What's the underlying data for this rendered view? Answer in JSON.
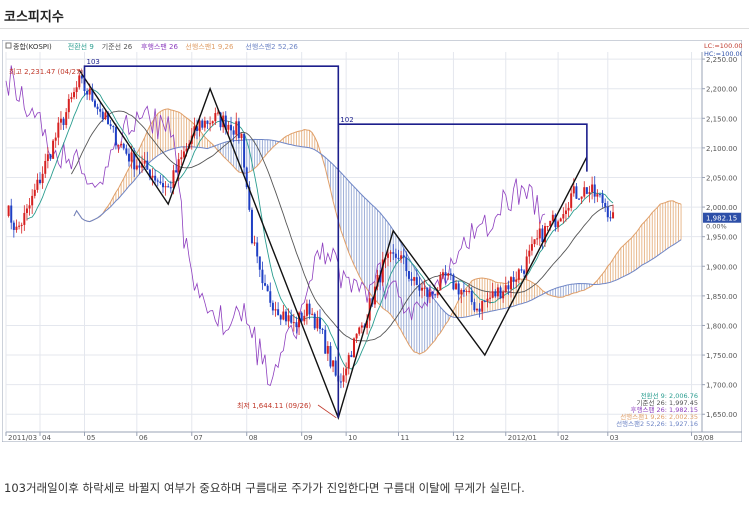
{
  "page": {
    "title": "코스피지수",
    "caption": "103거래일이후 하락세로 바뀔지 여부가 중요하며 구름대로 주가가 진입한다면 구름대 이탈에 무게가 실린다."
  },
  "chart_data": {
    "type": "candlestick-ichimoku",
    "legend": [
      {
        "label": "종합(KOSPI)",
        "color": "#333333"
      },
      {
        "label": "전환선 9",
        "color": "#2a9d8f"
      },
      {
        "label": "기준선 26",
        "color": "#555555"
      },
      {
        "label": "후행스팬 26",
        "color": "#8e3fbf"
      },
      {
        "label": "선행스팬1 9,26",
        "color": "#e0a06a"
      },
      {
        "label": "선행스팬2 52,26",
        "color": "#6f86c6"
      }
    ],
    "top_right_labels": [
      "LC:=100.00",
      "HC:=100.00"
    ],
    "y_ticks": [
      "2,250.00",
      "2,200.00",
      "2,150.00",
      "2,100.00",
      "2,050.00",
      "2,000.00",
      "1,950.00",
      "1,900.00",
      "1,850.00",
      "1,800.00",
      "1,750.00",
      "1,700.00",
      "1,650.00"
    ],
    "ylim": [
      1620,
      2262
    ],
    "current_price_label": "1,982.15",
    "x_ticks": [
      {
        "label": "2011/03",
        "idx": 0
      },
      {
        "label": "04",
        "idx": 13
      },
      {
        "label": "05",
        "idx": 30
      },
      {
        "label": "06",
        "idx": 50
      },
      {
        "label": "07",
        "idx": 71
      },
      {
        "label": "08",
        "idx": 92
      },
      {
        "label": "09",
        "idx": 113
      },
      {
        "label": "10",
        "idx": 130
      },
      {
        "label": "11",
        "idx": 150
      },
      {
        "label": "12",
        "idx": 171
      },
      {
        "label": "2012/01",
        "idx": 191
      },
      {
        "label": "02",
        "idx": 211
      },
      {
        "label": "03",
        "idx": 230
      },
      {
        "label": "03/08",
        "idx": 262
      }
    ],
    "annotations": {
      "high_label": "최고 2,231.47 (04/27)",
      "low_label": "최저 1,644.11 (09/26)",
      "count1": "103",
      "count2": "102",
      "percent": "0.00%"
    },
    "indicator_values": [
      {
        "label": "전환선 9: 2,006.76",
        "color": "#2a9d8f"
      },
      {
        "label": "기준선 26: 1,997.45",
        "color": "#555555"
      },
      {
        "label": "후행스팬 26: 1,982.15",
        "color": "#8e3fbf"
      },
      {
        "label": "선행스팬1 9,26: 2,002.35",
        "color": "#e0a06a"
      },
      {
        "label": "선행스팬2 52,26: 1,927.16",
        "color": "#6f86c6"
      }
    ],
    "trend_line": [
      {
        "idx": 28,
        "y": 2231
      },
      {
        "idx": 62,
        "y": 2005
      },
      {
        "idx": 78,
        "y": 2200
      },
      {
        "idx": 127,
        "y": 1644
      },
      {
        "idx": 148,
        "y": 1960
      },
      {
        "idx": 183,
        "y": 1750
      },
      {
        "idx": 222,
        "y": 2085
      }
    ],
    "count_brackets": [
      {
        "label": "103",
        "x_start": 30,
        "x_end": 127,
        "y": 2238
      },
      {
        "label": "102",
        "x_start": 127,
        "x_end": 222,
        "y": 2140
      }
    ],
    "close_series": [
      {
        "idx": 0,
        "y": 2000
      },
      {
        "idx": 4,
        "y": 1960
      },
      {
        "idx": 8,
        "y": 1990
      },
      {
        "idx": 14,
        "y": 2060
      },
      {
        "idx": 20,
        "y": 2130
      },
      {
        "idx": 28,
        "y": 2210
      },
      {
        "idx": 34,
        "y": 2180
      },
      {
        "idx": 40,
        "y": 2130
      },
      {
        "idx": 48,
        "y": 2080
      },
      {
        "idx": 55,
        "y": 2060
      },
      {
        "idx": 62,
        "y": 2030
      },
      {
        "idx": 68,
        "y": 2090
      },
      {
        "idx": 74,
        "y": 2140
      },
      {
        "idx": 80,
        "y": 2150
      },
      {
        "idx": 86,
        "y": 2140
      },
      {
        "idx": 90,
        "y": 2120
      },
      {
        "idx": 94,
        "y": 1950
      },
      {
        "idx": 98,
        "y": 1860
      },
      {
        "idx": 104,
        "y": 1830
      },
      {
        "idx": 110,
        "y": 1800
      },
      {
        "idx": 116,
        "y": 1830
      },
      {
        "idx": 121,
        "y": 1780
      },
      {
        "idx": 127,
        "y": 1700
      },
      {
        "idx": 132,
        "y": 1760
      },
      {
        "idx": 138,
        "y": 1820
      },
      {
        "idx": 144,
        "y": 1900
      },
      {
        "idx": 150,
        "y": 1920
      },
      {
        "idx": 156,
        "y": 1870
      },
      {
        "idx": 162,
        "y": 1850
      },
      {
        "idx": 168,
        "y": 1880
      },
      {
        "idx": 174,
        "y": 1860
      },
      {
        "idx": 180,
        "y": 1830
      },
      {
        "idx": 186,
        "y": 1850
      },
      {
        "idx": 192,
        "y": 1870
      },
      {
        "idx": 198,
        "y": 1900
      },
      {
        "idx": 204,
        "y": 1950
      },
      {
        "idx": 210,
        "y": 1980
      },
      {
        "idx": 216,
        "y": 2020
      },
      {
        "idx": 222,
        "y": 2030
      },
      {
        "idx": 228,
        "y": 2010
      },
      {
        "idx": 232,
        "y": 1982
      }
    ]
  }
}
